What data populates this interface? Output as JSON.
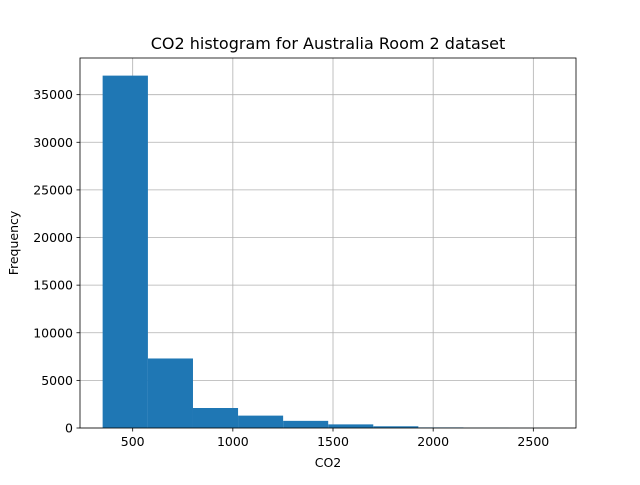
{
  "chart_data": {
    "type": "bar",
    "title": "CO2 histogram for Australia Room 2 dataset",
    "xlabel": "CO2",
    "ylabel": "Frequency",
    "xlim": [
      237,
      2713
    ],
    "ylim": [
      0,
      38850
    ],
    "xticks": [
      500,
      1000,
      1500,
      2000,
      2500
    ],
    "yticks": [
      0,
      5000,
      10000,
      15000,
      20000,
      25000,
      30000,
      35000
    ],
    "grid": true,
    "bar_color": "#1f77b4",
    "bin_edges": [
      350,
      576,
      801,
      1026,
      1251,
      1476,
      1701,
      1926,
      2151,
      2376,
      2601
    ],
    "values": [
      37000,
      7300,
      2100,
      1300,
      750,
      380,
      180,
      60,
      25,
      10
    ]
  }
}
